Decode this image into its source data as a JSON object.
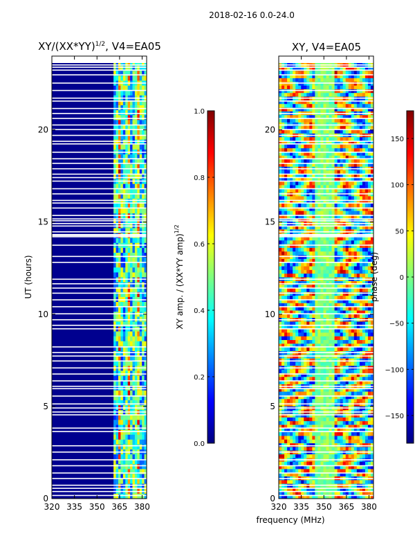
{
  "suptitle": "2018-02-16 0.0-24.0",
  "xlabel_shared": "frequency (MHz)",
  "colors": {
    "jet": [
      "#00007f",
      "#0000ff",
      "#007fff",
      "#00ffff",
      "#7fff7f",
      "#ffff00",
      "#ff7f00",
      "#ff0000",
      "#7f0000"
    ],
    "background": "#00008f"
  },
  "chart_data": [
    {
      "type": "heatmap",
      "title": "XY/(XX*YY)^{1/2}, V4=EA05",
      "title_main": "XY/(XX*YY)",
      "title_sup": "1/2",
      "title_tail": ", V4=EA05",
      "xlabel": "frequency (MHz)",
      "ylabel": "UT (hours)",
      "xlim": [
        320,
        383
      ],
      "ylim": [
        0,
        24
      ],
      "x_ticks": [
        320,
        335,
        350,
        365,
        380
      ],
      "y_ticks": [
        0,
        5,
        10,
        15,
        20
      ],
      "active_band_mhz": [
        361,
        383
      ],
      "colorbar": {
        "label": "XY amp. / (XX*YY amp)^{1/2}",
        "label_main": "XY amp. / (XX*YY amp)",
        "label_sup": "1/2",
        "range": [
          0.0,
          1.0
        ],
        "ticks": [
          0.0,
          0.2,
          0.4,
          0.6,
          0.8,
          1.0
        ],
        "tick_labels": [
          "0.0",
          "0.2",
          "0.4",
          "0.6",
          "0.8",
          "1.0"
        ]
      }
    },
    {
      "type": "heatmap",
      "title": "XY, V4=EA05",
      "xlabel": "frequency (MHz)",
      "ylabel": "",
      "xlim": [
        320,
        383
      ],
      "ylim": [
        0,
        24
      ],
      "x_ticks": [
        320,
        335,
        350,
        365,
        380
      ],
      "y_ticks": [
        0,
        5,
        10,
        15,
        20
      ],
      "colorbar": {
        "label": "phase (deg)",
        "range": [
          -180,
          180
        ],
        "ticks": [
          -150,
          -100,
          -50,
          0,
          50,
          100,
          150
        ],
        "tick_labels": [
          "−150",
          "−100",
          "−50",
          "0",
          "50",
          "100",
          "150"
        ]
      }
    }
  ]
}
